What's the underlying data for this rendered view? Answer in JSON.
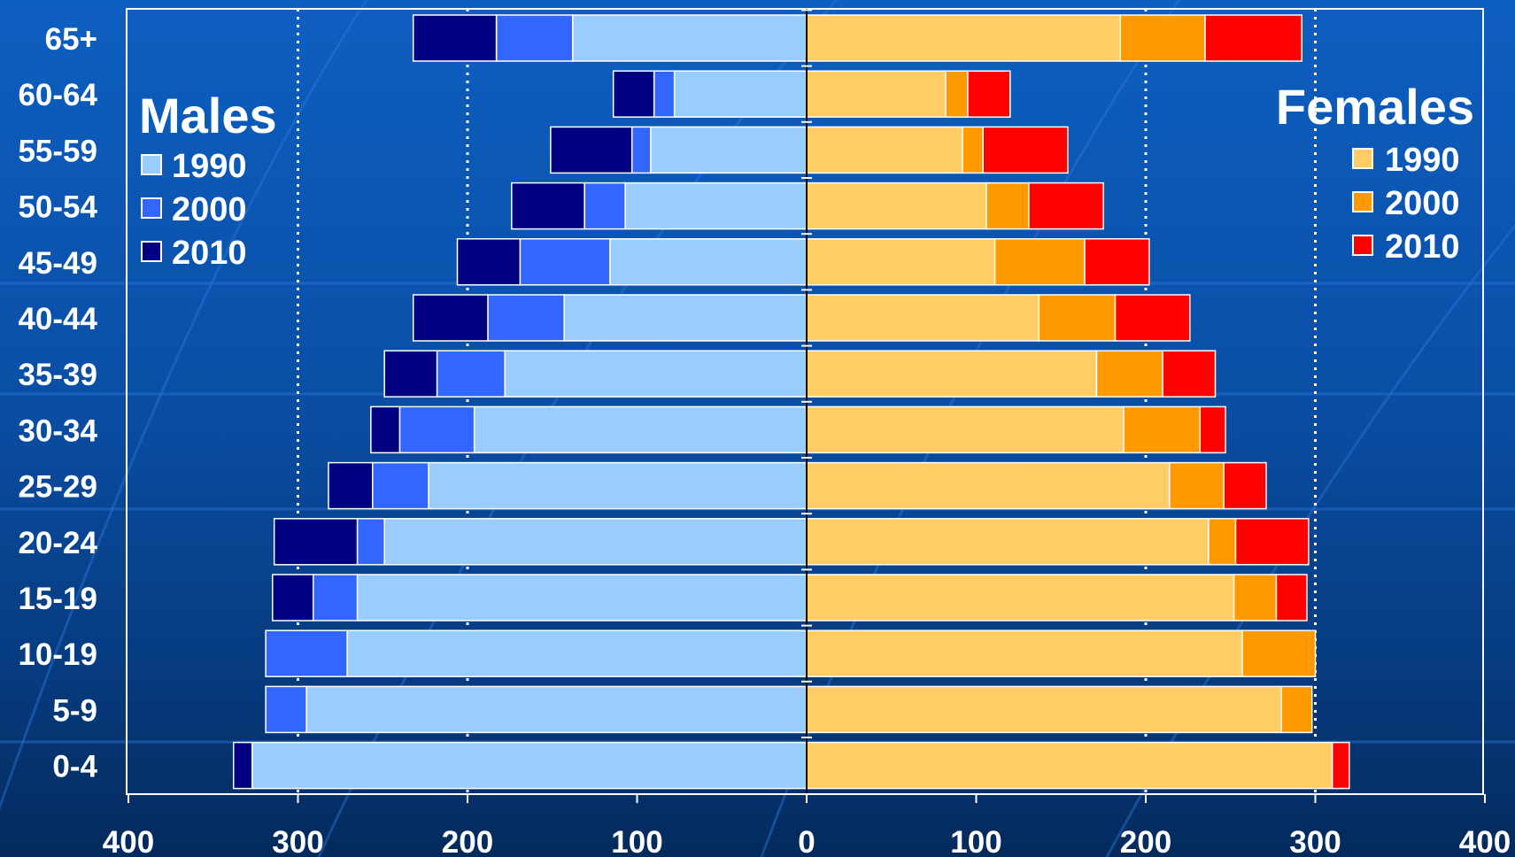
{
  "chart_data": {
    "type": "bar",
    "orientation": "horizontal",
    "stacked": true,
    "layout": "population-pyramid",
    "categories": [
      "65+",
      "60-64",
      "55-59",
      "50-54",
      "45-49",
      "40-44",
      "35-39",
      "30-34",
      "25-29",
      "20-24",
      "15-19",
      "10-19",
      "5-9",
      "0-4"
    ],
    "xlim": [
      -400,
      400
    ],
    "xticks": [
      -400,
      -300,
      -200,
      -100,
      0,
      100,
      200,
      300,
      400
    ],
    "xtick_labels": [
      "400",
      "300",
      "200",
      "100",
      "0",
      "100",
      "200",
      "300",
      "400"
    ],
    "grid": {
      "vertical_dotted_at": [
        -300,
        -200,
        200,
        300
      ]
    },
    "groups": [
      {
        "name": "Males",
        "side": "left",
        "legend_position": "top-left",
        "series": [
          {
            "name": "1990",
            "color": "#99ccff",
            "values": [
              138,
              78,
              92,
              107,
              116,
              143,
              178,
              196,
              223,
              249,
              265,
              271,
              295,
              327
            ]
          },
          {
            "name": "2000",
            "color": "#3366ff",
            "values": [
              45,
              12,
              11,
              24,
              53,
              45,
              40,
              44,
              33,
              16,
              26,
              48,
              24,
              0
            ]
          },
          {
            "name": "2010",
            "color": "#000080",
            "values": [
              49,
              24,
              48,
              43,
              37,
              44,
              31,
              17,
              26,
              49,
              24,
              0,
              0,
              11
            ]
          }
        ]
      },
      {
        "name": "Females",
        "side": "right",
        "legend_position": "top-right",
        "series": [
          {
            "name": "1990",
            "color": "#ffcc66",
            "values": [
              185,
              82,
              92,
              106,
              111,
              137,
              171,
              187,
              214,
              237,
              252,
              257,
              280,
              310
            ]
          },
          {
            "name": "2000",
            "color": "#ff9900",
            "values": [
              50,
              13,
              12,
              25,
              53,
              45,
              39,
              45,
              32,
              16,
              25,
              43,
              18,
              0
            ]
          },
          {
            "name": "2010",
            "color": "#ff0000",
            "values": [
              57,
              25,
              50,
              44,
              38,
              44,
              31,
              15,
              25,
              43,
              18,
              0,
              0,
              10
            ]
          }
        ]
      }
    ]
  }
}
